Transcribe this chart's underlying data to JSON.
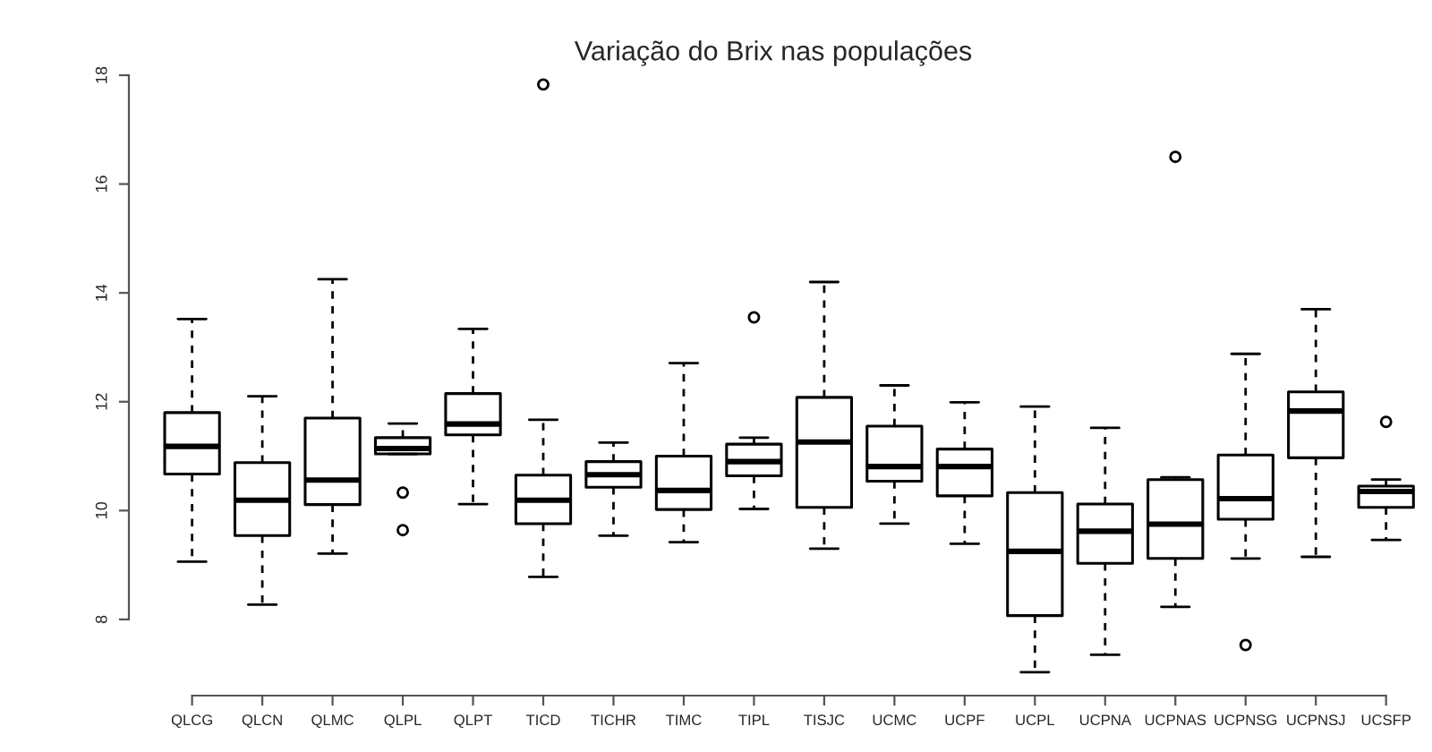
{
  "chart_data": {
    "type": "box",
    "title": "Variação do Brix nas populações",
    "categories": [
      "QLCG",
      "QLCN",
      "QLMC",
      "QLPL",
      "QLPT",
      "TICD",
      "TICHR",
      "TIMC",
      "TIPL",
      "TISJC",
      "UCMC",
      "UCPF",
      "UCPL",
      "UCPNA",
      "UCPNAS",
      "UCPNSG",
      "UCPNSJ",
      "UCSFP"
    ],
    "boxes": [
      {
        "low": 9.06,
        "q1": 10.67,
        "median": 11.18,
        "q3": 11.8,
        "high": 13.52
      },
      {
        "low": 8.27,
        "q1": 9.54,
        "median": 10.19,
        "q3": 10.88,
        "high": 12.1
      },
      {
        "low": 9.21,
        "q1": 10.11,
        "median": 10.56,
        "q3": 11.7,
        "high": 14.25
      },
      {
        "low": 11.04,
        "q1": 11.04,
        "median": 11.14,
        "q3": 11.34,
        "high": 11.6,
        "outliers": [
          10.33,
          9.64
        ]
      },
      {
        "low": 10.12,
        "q1": 11.39,
        "median": 11.59,
        "q3": 12.15,
        "high": 13.34
      },
      {
        "low": 8.78,
        "q1": 9.76,
        "median": 10.19,
        "q3": 10.65,
        "high": 11.67,
        "outliers": [
          17.83
        ]
      },
      {
        "low": 9.54,
        "q1": 10.43,
        "median": 10.66,
        "q3": 10.9,
        "high": 11.25
      },
      {
        "low": 9.42,
        "q1": 10.02,
        "median": 10.37,
        "q3": 11.0,
        "high": 12.71
      },
      {
        "low": 10.03,
        "q1": 10.64,
        "median": 10.9,
        "q3": 11.22,
        "high": 11.34,
        "outliers": [
          13.55
        ]
      },
      {
        "low": 9.3,
        "q1": 10.06,
        "median": 11.26,
        "q3": 12.08,
        "high": 14.2
      },
      {
        "low": 9.76,
        "q1": 10.54,
        "median": 10.81,
        "q3": 11.55,
        "high": 12.3
      },
      {
        "low": 9.39,
        "q1": 10.27,
        "median": 10.81,
        "q3": 11.13,
        "high": 11.99
      },
      {
        "low": 7.03,
        "q1": 8.07,
        "median": 9.25,
        "q3": 10.33,
        "high": 11.91
      },
      {
        "low": 7.35,
        "q1": 9.03,
        "median": 9.62,
        "q3": 10.12,
        "high": 11.52
      },
      {
        "low": 8.23,
        "q1": 9.12,
        "median": 9.75,
        "q3": 10.57,
        "high": 10.61,
        "outliers": [
          16.5
        ]
      },
      {
        "low": 9.12,
        "q1": 9.84,
        "median": 10.22,
        "q3": 11.02,
        "high": 12.88,
        "outliers": [
          7.53
        ]
      },
      {
        "low": 9.15,
        "q1": 10.97,
        "median": 11.83,
        "q3": 12.18,
        "high": 13.7
      },
      {
        "low": 9.46,
        "q1": 10.06,
        "median": 10.35,
        "q3": 10.45,
        "high": 10.57,
        "outliers": [
          11.63
        ]
      }
    ],
    "ylim": [
      6.6,
      18
    ],
    "yticks": [
      8,
      10,
      12,
      14,
      16,
      18
    ],
    "grid": false,
    "legend": false
  }
}
